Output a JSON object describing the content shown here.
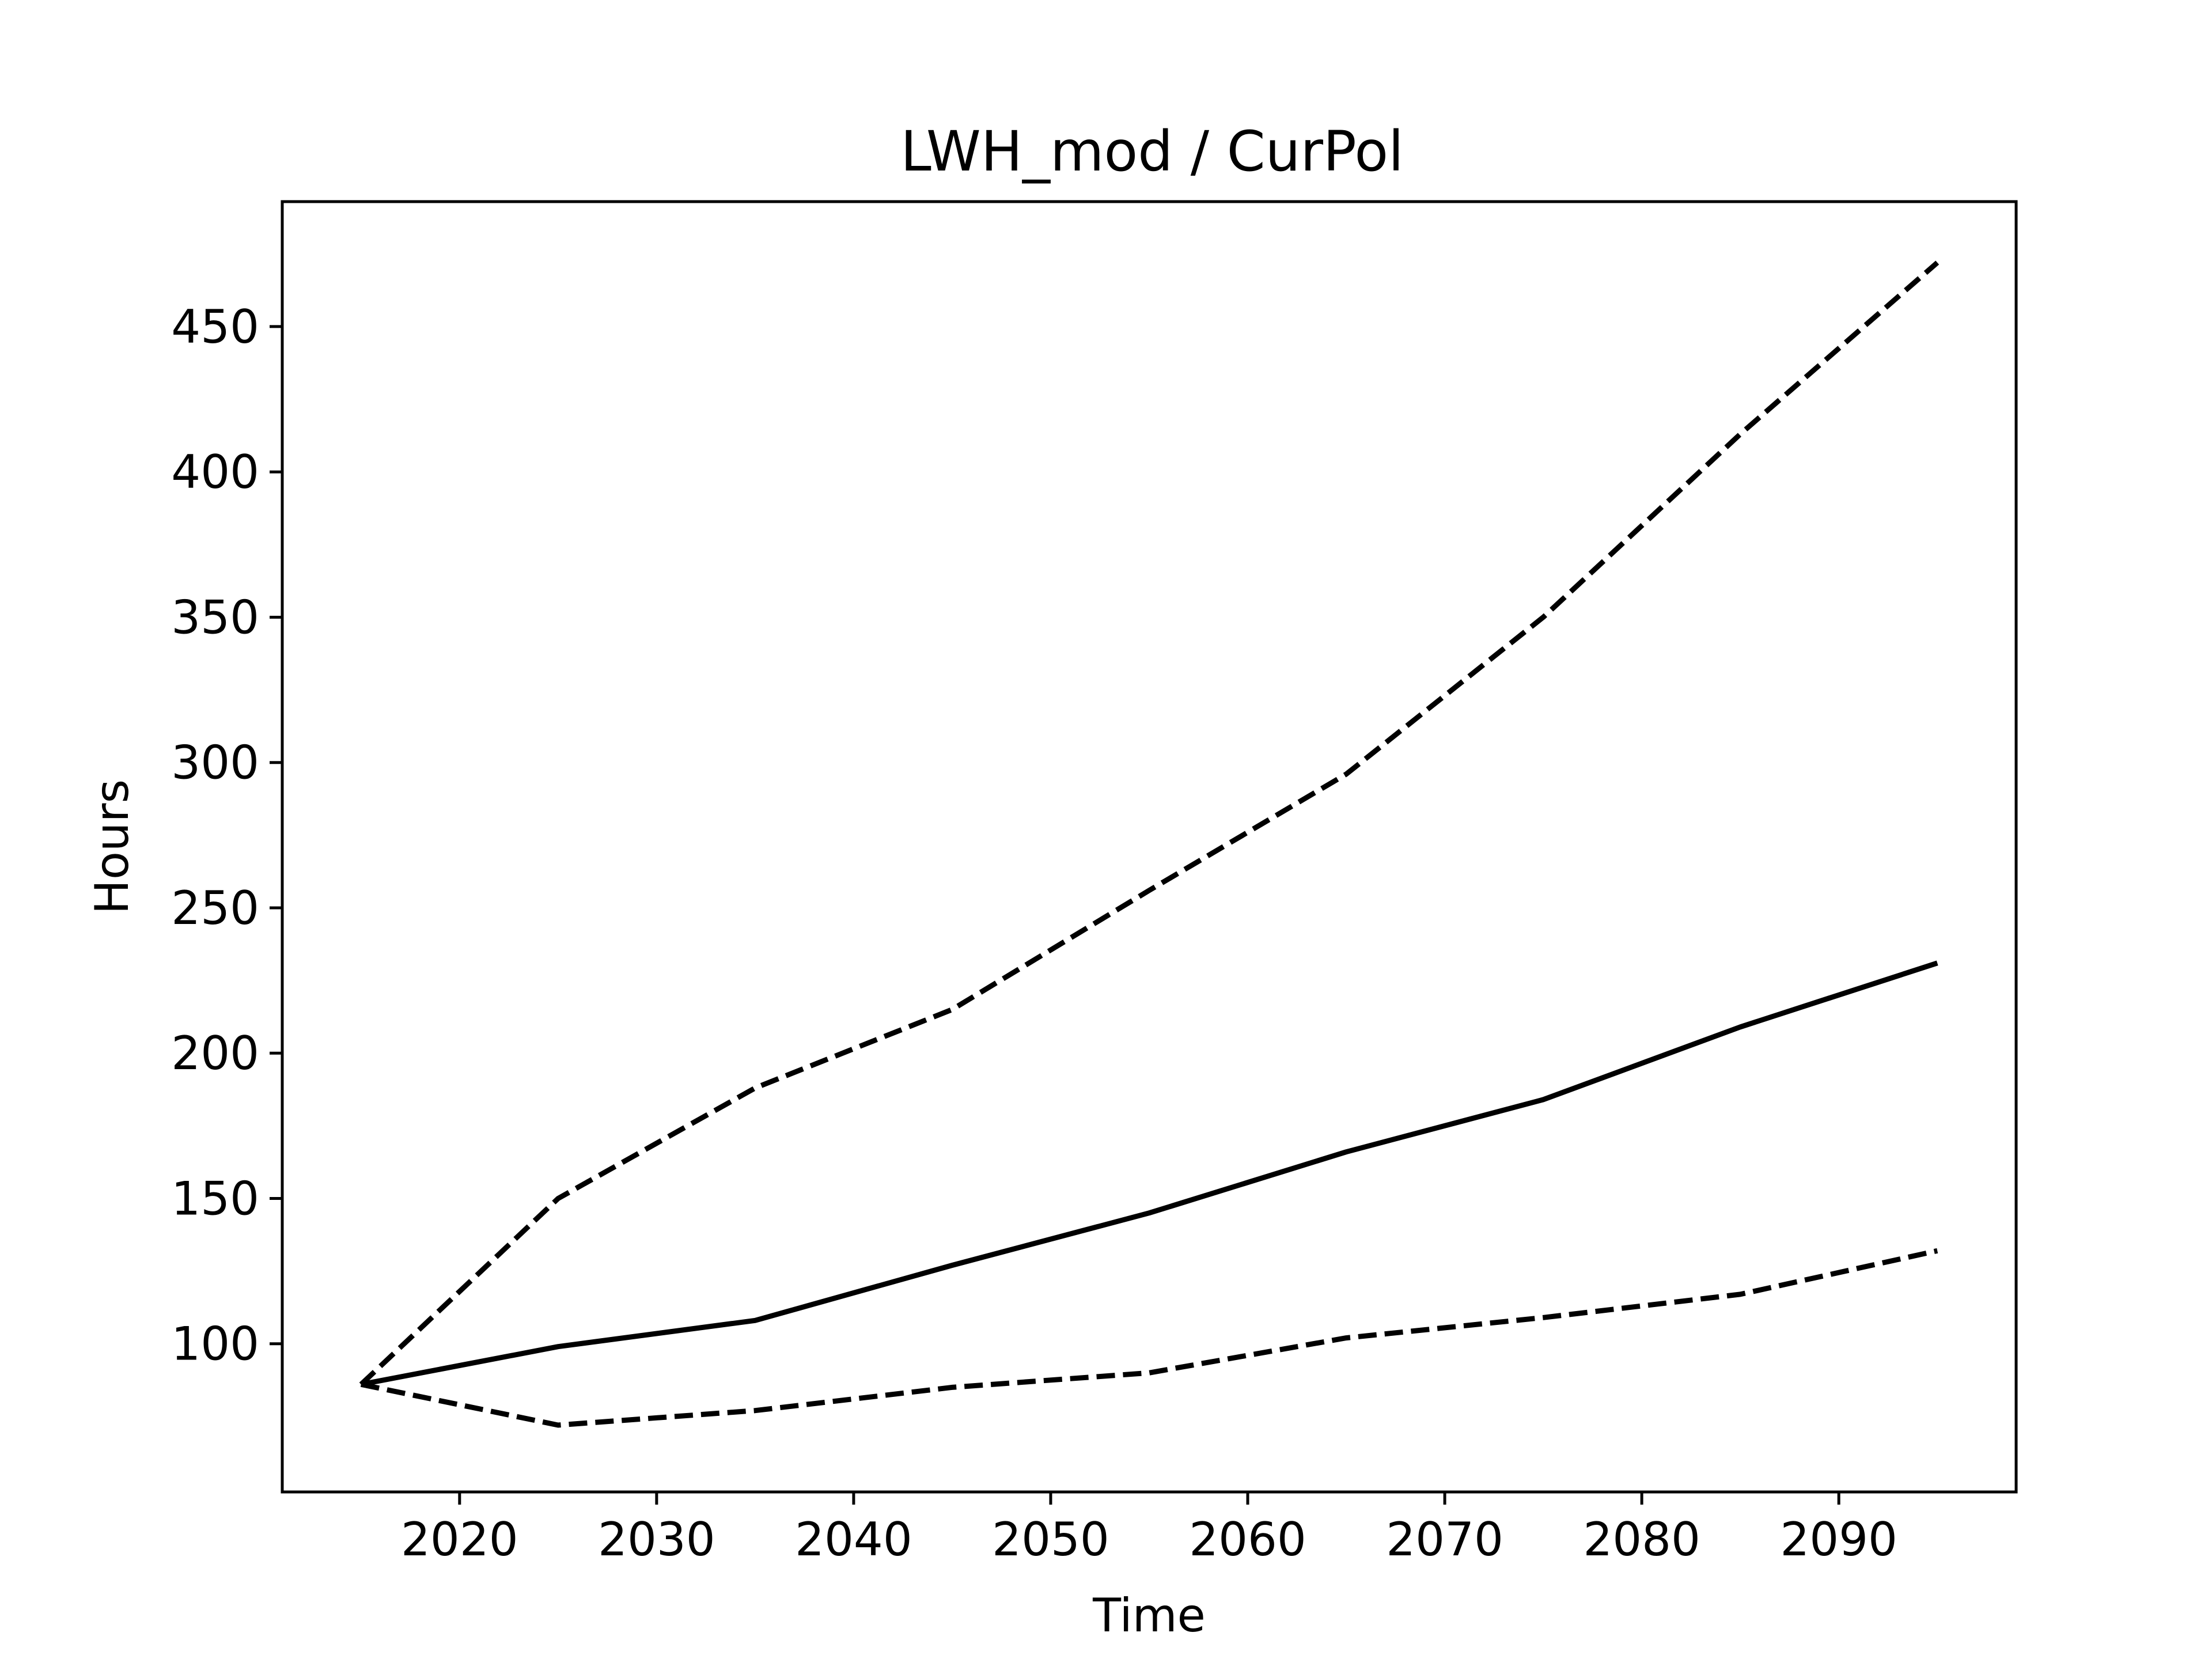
{
  "chart_data": {
    "type": "line",
    "title": "LWH_mod / CurPol",
    "xlabel": "Time",
    "ylabel": "Hours",
    "xlim": [
      2011,
      2099
    ],
    "ylim": [
      49,
      493
    ],
    "x_ticks": [
      2020,
      2030,
      2040,
      2050,
      2060,
      2070,
      2080,
      2090
    ],
    "y_ticks": [
      100,
      150,
      200,
      250,
      300,
      350,
      400,
      450
    ],
    "grid": false,
    "legend": "none",
    "x": [
      2015,
      2025,
      2035,
      2045,
      2055,
      2065,
      2075,
      2085,
      2095
    ],
    "series": [
      {
        "style": "solid",
        "color": "#000000",
        "values": [
          86,
          99,
          108,
          127,
          145,
          166,
          184,
          209,
          231
        ]
      },
      {
        "style": "dashed",
        "color": "#000000",
        "values": [
          86,
          150,
          188,
          215,
          256,
          296,
          350,
          413,
          472
        ]
      },
      {
        "style": "dashed",
        "color": "#000000",
        "values": [
          86,
          72,
          77,
          85,
          90,
          102,
          109,
          117,
          132
        ]
      }
    ]
  }
}
